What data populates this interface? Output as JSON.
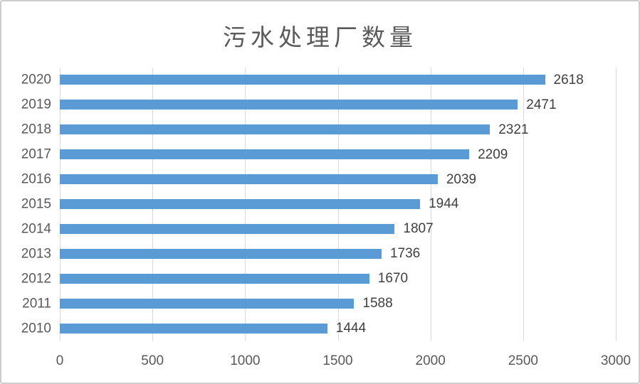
{
  "chart_data": {
    "type": "bar",
    "orientation": "horizontal",
    "title": "污水处理厂数量",
    "categories": [
      "2020",
      "2019",
      "2018",
      "2017",
      "2016",
      "2015",
      "2014",
      "2013",
      "2012",
      "2011",
      "2010"
    ],
    "values": [
      2618,
      2471,
      2321,
      2209,
      2039,
      1944,
      1807,
      1736,
      1670,
      1588,
      1444
    ],
    "xlabel": "",
    "ylabel": "",
    "xlim": [
      0,
      3000
    ],
    "x_ticks": [
      0,
      500,
      1000,
      1500,
      2000,
      2500,
      3000
    ],
    "data_labels": true,
    "grid": "vertical",
    "legend_position": "none",
    "colors": {
      "bar": "#5b9bd5",
      "gridline": "#d9d9d9",
      "axis_text": "#595959",
      "data_label_text": "#3f3f3f",
      "title_text": "#595959",
      "frame_border": "#cdcdcd",
      "background": "#ffffff"
    }
  }
}
